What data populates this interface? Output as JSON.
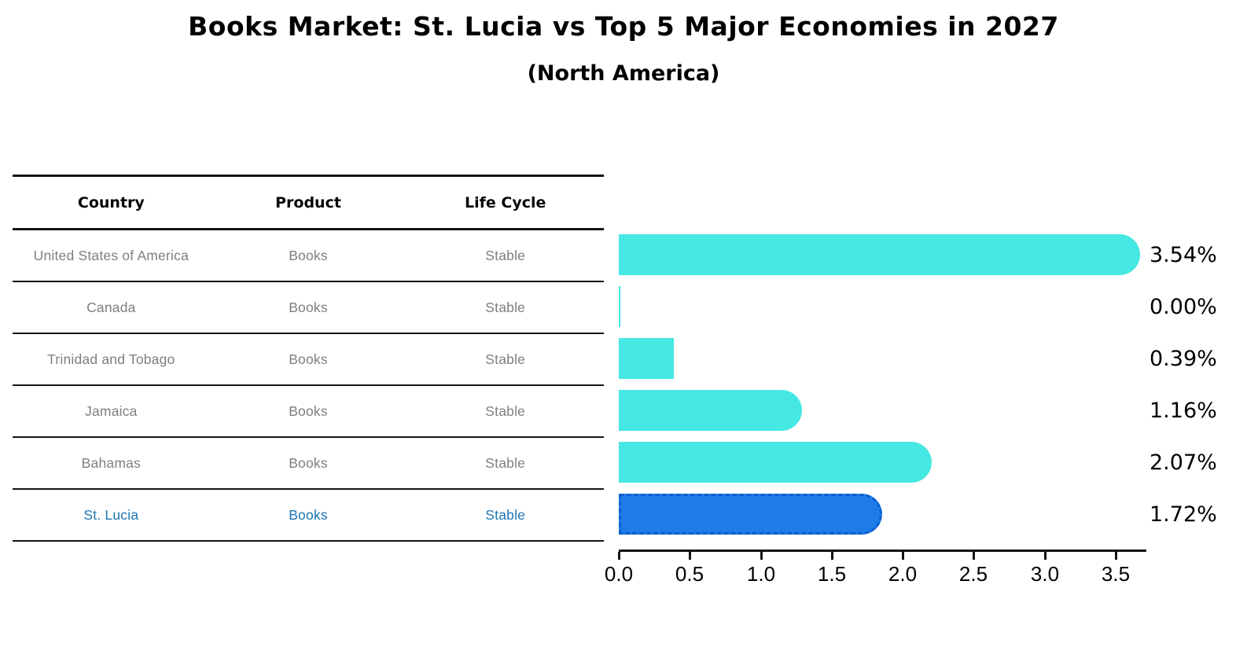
{
  "header": {
    "title": "Books Market: St. Lucia vs Top 5 Major Economies in 2027",
    "subtitle": "(North America)"
  },
  "table": {
    "columns": [
      "Country",
      "Product",
      "Life Cycle"
    ],
    "rows": [
      {
        "country": "United States of America",
        "product": "Books",
        "life_cycle": "Stable",
        "highlighted": false
      },
      {
        "country": "Canada",
        "product": "Books",
        "life_cycle": "Stable",
        "highlighted": false
      },
      {
        "country": "Trinidad and Tobago",
        "product": "Books",
        "life_cycle": "Stable",
        "highlighted": false
      },
      {
        "country": "Jamaica",
        "product": "Books",
        "life_cycle": "Stable",
        "highlighted": false
      },
      {
        "country": "Bahamas",
        "product": "Books",
        "life_cycle": "Stable",
        "highlighted": false
      },
      {
        "country": "St. Lucia",
        "product": "Books",
        "life_cycle": "Stable",
        "highlighted": true
      }
    ]
  },
  "chart_data": {
    "type": "bar",
    "orientation": "horizontal",
    "title": "Books Market: St. Lucia vs Top 5 Major Economies in 2027",
    "subtitle": "(North America)",
    "categories": [
      "United States of America",
      "Canada",
      "Trinidad and Tobago",
      "Jamaica",
      "Bahamas",
      "St. Lucia"
    ],
    "values": [
      3.54,
      0.0,
      0.39,
      1.16,
      2.07,
      1.72
    ],
    "value_labels": [
      "3.54%",
      "0.00%",
      "0.39%",
      "1.16%",
      "2.07%",
      "1.72%"
    ],
    "x_ticks": [
      0.0,
      0.5,
      1.0,
      1.5,
      2.0,
      2.5,
      3.0,
      3.5
    ],
    "xlim": [
      0,
      3.7
    ],
    "grid": false,
    "legend": "none",
    "bar_color": "#45e8e2",
    "highlight_bar_color": "#1e7ce8",
    "highlight_border_color": "#0d5fd0",
    "highlight_text_color": "#1f77b4",
    "highlight_index": 5
  }
}
